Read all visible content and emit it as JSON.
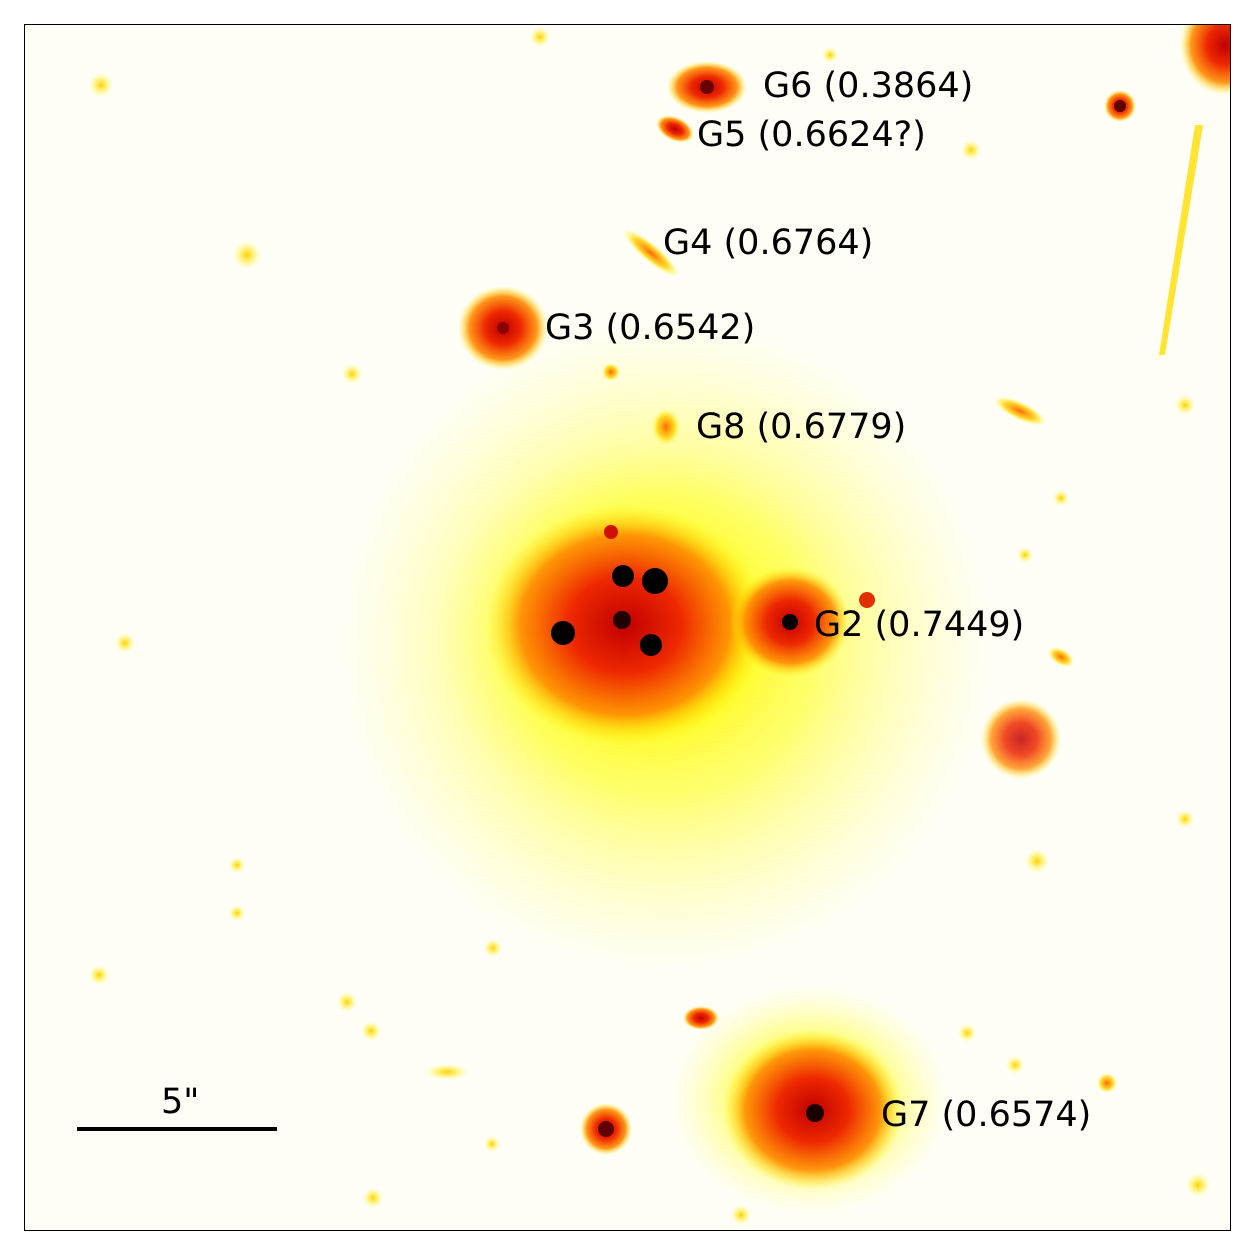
{
  "image": {
    "colormap": "hot (inverted)",
    "colors": {
      "background": "#fffef6",
      "halo": "#ffff00",
      "mid": "#ff9a00",
      "bright": "#e82000",
      "core": "#000000"
    }
  },
  "labels": {
    "g6": "G6 (0.3864)",
    "g5": "G5 (0.6624?)",
    "g4": "G4 (0.6764)",
    "g3": "G3 (0.6542)",
    "g8": "G8 (0.6779)",
    "g2": "G2 (0.7449)",
    "g7": "G7 (0.6574)"
  },
  "scale_bar": {
    "label": "5\""
  }
}
